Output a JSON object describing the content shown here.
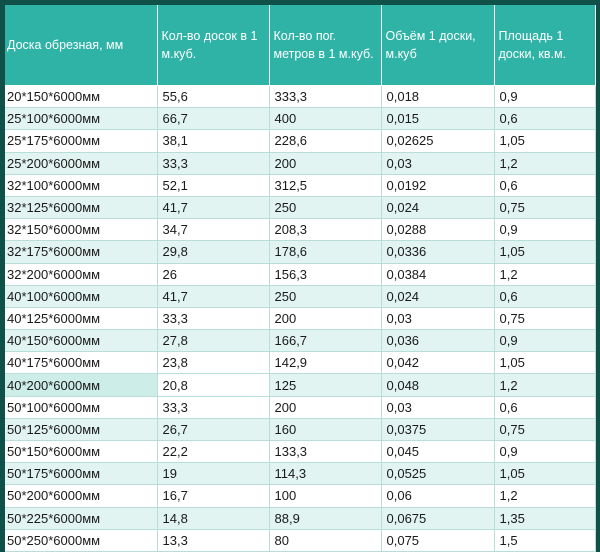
{
  "table": {
    "headers": [
      "Доска обрезная,  мм",
      "Кол-во досок в 1 м.куб.",
      "Кол-во пог. метров в  1 м.куб.",
      "Объём 1 доски, м.куб",
      "Площадь 1 доски, кв.м."
    ],
    "rows": [
      [
        "20*150*6000мм",
        "55,6",
        "333,3",
        "0,018",
        "0,9"
      ],
      [
        "25*100*6000мм",
        "66,7",
        "400",
        "0,015",
        "0,6"
      ],
      [
        "25*175*6000мм",
        "38,1",
        "228,6",
        "0,02625",
        "1,05"
      ],
      [
        "25*200*6000мм",
        "33,3",
        "200",
        "0,03",
        "1,2"
      ],
      [
        "32*100*6000мм",
        "52,1",
        "312,5",
        "0,0192",
        "0,6"
      ],
      [
        "32*125*6000мм",
        "41,7",
        "250",
        "0,024",
        "0,75"
      ],
      [
        "32*150*6000мм",
        "34,7",
        "208,3",
        "0,0288",
        "0,9"
      ],
      [
        "32*175*6000мм",
        "29,8",
        "178,6",
        "0,0336",
        "1,05"
      ],
      [
        "32*200*6000мм",
        "26",
        "156,3",
        "0,0384",
        "1,2"
      ],
      [
        "40*100*6000мм",
        "41,7",
        "250",
        "0,024",
        "0,6"
      ],
      [
        "40*125*6000мм",
        "33,3",
        "200",
        "0,03",
        "0,75"
      ],
      [
        "40*150*6000мм",
        "27,8",
        "166,7",
        "0,036",
        "0,9"
      ],
      [
        "40*175*6000мм",
        "23,8",
        "142,9",
        "0,042",
        "1,05"
      ],
      [
        "40*200*6000мм",
        "20,8",
        "125",
        "0,048",
        "1,2"
      ],
      [
        "50*100*6000мм",
        "33,3",
        "200",
        "0,03",
        "0,6"
      ],
      [
        "50*125*6000мм",
        "26,7",
        "160",
        "0,0375",
        "0,75"
      ],
      [
        "50*150*6000мм",
        "22,2",
        "133,3",
        "0,045",
        "0,9"
      ],
      [
        "50*175*6000мм",
        "19",
        "114,3",
        "0,0525",
        "1,05"
      ],
      [
        "50*200*6000мм",
        "16,7",
        "100",
        "0,06",
        "1,2"
      ],
      [
        "50*225*6000мм",
        "14,8",
        "88,9",
        "0,0675",
        "1,35"
      ],
      [
        "50*250*6000мм",
        "13,3",
        "80",
        "0,075",
        "1,5"
      ]
    ]
  }
}
